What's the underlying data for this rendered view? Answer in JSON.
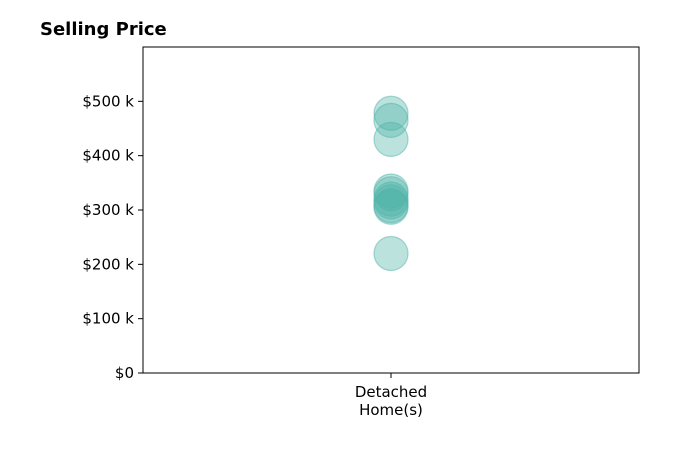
{
  "chart_data": {
    "type": "scatter",
    "title": "Selling Price",
    "xlabel": "",
    "ylabel": "",
    "categories": [
      {
        "lines": [
          "Detached",
          "Home(s)"
        ]
      }
    ],
    "series": [
      {
        "category_index": 0,
        "values": [
          478000,
          465000,
          430000,
          335000,
          330000,
          320000,
          315000,
          308000,
          305000,
          220000
        ]
      }
    ],
    "y_ticks": [
      {
        "value": 0,
        "label": "$0"
      },
      {
        "value": 100000,
        "label": "$100 k"
      },
      {
        "value": 200000,
        "label": "$200 k"
      },
      {
        "value": 300000,
        "label": "$300 k"
      },
      {
        "value": 400000,
        "label": "$400 k"
      },
      {
        "value": 500000,
        "label": "$500 k"
      }
    ],
    "ylim": [
      0,
      600000
    ],
    "grid": false,
    "marker_color": "#4fb3a9",
    "marker_opacity": 0.38
  }
}
